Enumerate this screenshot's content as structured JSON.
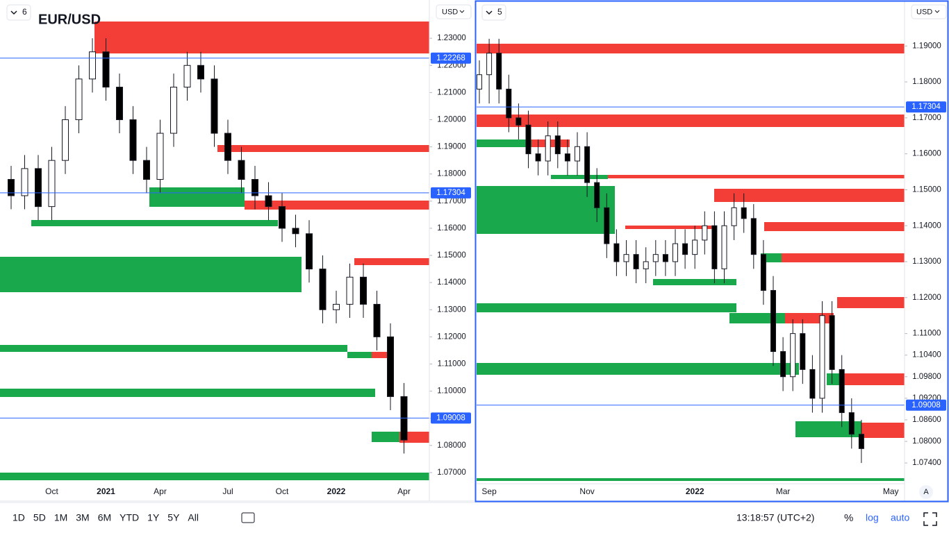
{
  "toolbar": {
    "ranges": [
      "1D",
      "5D",
      "1M",
      "3M",
      "6M",
      "YTD",
      "1Y",
      "5Y",
      "All"
    ],
    "clock": "13:18:57 (UTC+2)",
    "percent": "%",
    "log": "log",
    "auto": "auto",
    "scale_mode": "A"
  },
  "chart_data": [
    {
      "type": "candlestick",
      "title": "EUR/USD",
      "layout_badge": "6",
      "currency": "USD",
      "up_color": "#ffffff",
      "down_color": "#000000",
      "line_color": "#2962ff",
      "categories": [
        null,
        null,
        null,
        "Oct",
        null,
        null,
        null,
        "2021",
        null,
        null,
        null,
        "Apr",
        null,
        null,
        null,
        null,
        "Jul",
        null,
        null,
        null,
        "Oct",
        null,
        null,
        null,
        "2022",
        null,
        null,
        null,
        null,
        "Apr"
      ],
      "open": [
        1.178,
        1.172,
        1.182,
        1.168,
        1.185,
        1.2,
        1.215,
        1.225,
        1.212,
        1.2,
        1.185,
        1.178,
        1.195,
        1.212,
        1.22,
        1.215,
        1.195,
        1.185,
        1.178,
        1.172,
        1.168,
        1.16,
        1.158,
        1.145,
        1.13,
        1.132,
        1.142,
        1.132,
        1.12,
        1.098
      ],
      "high": [
        1.183,
        1.187,
        1.187,
        1.19,
        1.205,
        1.22,
        1.23,
        1.23,
        1.217,
        1.205,
        1.19,
        1.2,
        1.217,
        1.225,
        1.225,
        1.22,
        1.2,
        1.19,
        1.183,
        1.177,
        1.173,
        1.165,
        1.163,
        1.15,
        1.137,
        1.147,
        1.147,
        1.137,
        1.125,
        1.103
      ],
      "low": [
        1.167,
        1.167,
        1.163,
        1.163,
        1.18,
        1.195,
        1.21,
        1.207,
        1.195,
        1.18,
        1.173,
        1.173,
        1.19,
        1.207,
        1.21,
        1.19,
        1.18,
        1.173,
        1.167,
        1.163,
        1.155,
        1.153,
        1.14,
        1.125,
        1.125,
        1.127,
        1.127,
        1.115,
        1.093,
        1.077
      ],
      "close": [
        1.172,
        1.182,
        1.168,
        1.185,
        1.2,
        1.215,
        1.225,
        1.212,
        1.2,
        1.185,
        1.178,
        1.195,
        1.212,
        1.22,
        1.215,
        1.195,
        1.185,
        1.178,
        1.172,
        1.168,
        1.16,
        1.158,
        1.145,
        1.13,
        1.132,
        1.142,
        1.132,
        1.12,
        1.098,
        1.082
      ],
      "ylim": [
        1.0595,
        1.2441
      ],
      "yticks": [
        {
          "value": 1.23,
          "label": "1.23000"
        },
        {
          "value": 1.22,
          "label": "1.22000"
        },
        {
          "value": 1.21,
          "label": "1.21000"
        },
        {
          "value": 1.2,
          "label": "1.20000"
        },
        {
          "value": 1.19,
          "label": "1.19000"
        },
        {
          "value": 1.18,
          "label": "1.18000"
        },
        {
          "value": 1.17,
          "label": "1.17000"
        },
        {
          "value": 1.16,
          "label": "1.16000"
        },
        {
          "value": 1.15,
          "label": "1.15000"
        },
        {
          "value": 1.14,
          "label": "1.14000"
        },
        {
          "value": 1.13,
          "label": "1.13000"
        },
        {
          "value": 1.12,
          "label": "1.12000"
        },
        {
          "value": 1.11,
          "label": "1.11000"
        },
        {
          "value": 1.1,
          "label": "1.10000"
        },
        {
          "value": 1.09,
          "label": "1.09000"
        },
        {
          "value": 1.08,
          "label": "1.08000"
        },
        {
          "value": 1.07,
          "label": "1.07000"
        }
      ],
      "price_lines": [
        1.22268,
        1.17304,
        1.09008
      ]
    },
    {
      "type": "candlestick",
      "layout_badge": "5",
      "currency": "USD",
      "up_color": "#ffffff",
      "down_color": "#000000",
      "line_color": "#2962ff",
      "categories": [
        null,
        "Sep",
        null,
        null,
        null,
        null,
        null,
        null,
        null,
        null,
        null,
        "Nov",
        null,
        null,
        null,
        null,
        null,
        null,
        null,
        null,
        null,
        null,
        "2022",
        null,
        null,
        null,
        null,
        null,
        null,
        null,
        null,
        "Mar",
        null,
        null,
        null,
        null,
        null,
        null,
        null,
        null,
        null,
        null,
        "May"
      ],
      "open": [
        1.178,
        1.182,
        1.188,
        1.178,
        1.17,
        1.168,
        1.16,
        1.158,
        1.165,
        1.16,
        1.158,
        1.162,
        1.152,
        1.145,
        1.135,
        1.13,
        1.132,
        1.128,
        1.13,
        1.132,
        1.13,
        1.135,
        1.132,
        1.136,
        1.14,
        1.128,
        1.14,
        1.145,
        1.142,
        1.132,
        1.122,
        1.105,
        1.098,
        1.11,
        1.1,
        1.092,
        1.115,
        1.1,
        1.088,
        1.082,
        null,
        null,
        null
      ],
      "high": [
        1.186,
        1.192,
        1.192,
        1.182,
        1.174,
        1.172,
        1.164,
        1.169,
        1.169,
        1.164,
        1.166,
        1.166,
        1.156,
        1.149,
        1.139,
        1.136,
        1.136,
        1.134,
        1.136,
        1.136,
        1.139,
        1.139,
        1.14,
        1.144,
        1.144,
        1.144,
        1.149,
        1.149,
        1.146,
        1.136,
        1.126,
        1.109,
        1.114,
        1.114,
        1.104,
        1.119,
        1.119,
        1.104,
        1.092,
        1.086,
        null,
        null,
        null
      ],
      "low": [
        1.174,
        1.174,
        1.174,
        1.166,
        1.164,
        1.156,
        1.154,
        1.154,
        1.156,
        1.154,
        1.154,
        1.148,
        1.141,
        1.131,
        1.126,
        1.126,
        1.124,
        1.124,
        1.126,
        1.126,
        1.126,
        1.128,
        1.128,
        1.132,
        1.124,
        1.124,
        1.136,
        1.138,
        1.128,
        1.118,
        1.101,
        1.094,
        1.094,
        1.096,
        1.088,
        1.088,
        1.096,
        1.084,
        1.078,
        1.074,
        null,
        null,
        null
      ],
      "close": [
        1.182,
        1.188,
        1.178,
        1.17,
        1.168,
        1.16,
        1.158,
        1.165,
        1.16,
        1.158,
        1.162,
        1.152,
        1.145,
        1.135,
        1.13,
        1.132,
        1.128,
        1.13,
        1.132,
        1.13,
        1.135,
        1.132,
        1.136,
        1.14,
        1.128,
        1.14,
        1.145,
        1.142,
        1.132,
        1.122,
        1.105,
        1.098,
        1.11,
        1.1,
        1.092,
        1.115,
        1.1,
        1.088,
        1.082,
        1.078,
        null,
        null,
        null
      ],
      "ylim": [
        1.0634,
        1.2024
      ],
      "yticks": [
        {
          "value": 1.19,
          "label": "1.19000"
        },
        {
          "value": 1.18,
          "label": "1.18000"
        },
        {
          "value": 1.17,
          "label": "1.17000"
        },
        {
          "value": 1.16,
          "label": "1.16000"
        },
        {
          "value": 1.15,
          "label": "1.15000"
        },
        {
          "value": 1.14,
          "label": "1.14000"
        },
        {
          "value": 1.13,
          "label": "1.13000"
        },
        {
          "value": 1.12,
          "label": "1.12000"
        },
        {
          "value": 1.11,
          "label": "1.11000"
        },
        {
          "value": 1.104,
          "label": "1.10400"
        },
        {
          "value": 1.098,
          "label": "1.09800"
        },
        {
          "value": 1.092,
          "label": "1.09200"
        },
        {
          "value": 1.086,
          "label": "1.08600"
        },
        {
          "value": 1.08,
          "label": "1.08000"
        },
        {
          "value": 1.074,
          "label": "1.07400"
        }
      ],
      "price_lines": [
        1.17304,
        1.09008
      ]
    }
  ]
}
